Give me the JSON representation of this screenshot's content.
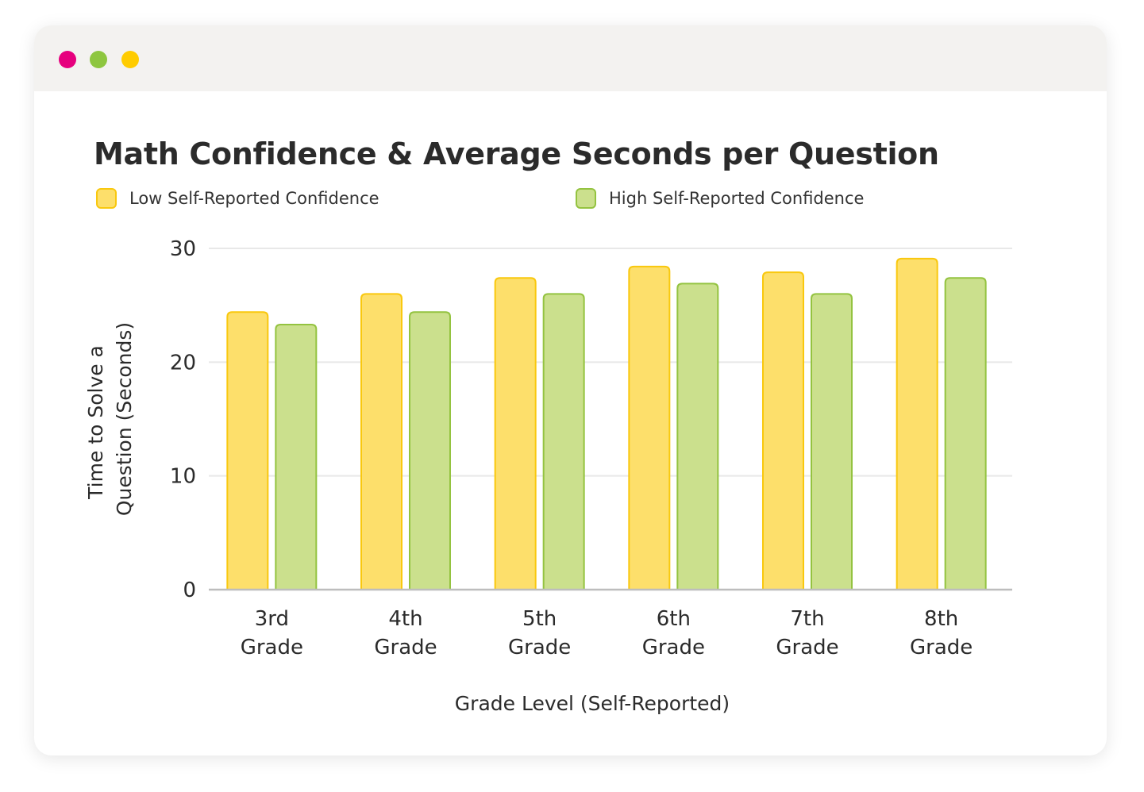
{
  "window": {
    "dot_colors": [
      "#e6007e",
      "#8dc63f",
      "#ffcc00"
    ]
  },
  "chart_data": {
    "type": "bar",
    "title": "Math Confidence & Average Seconds per Question",
    "xlabel": "Grade Level (Self-Reported)",
    "ylabel_lines": [
      "Time to Solve a",
      "Question (Seconds)"
    ],
    "ylim": [
      0,
      30
    ],
    "yticks": [
      "0",
      "10",
      "20",
      "30"
    ],
    "grid": true,
    "legend_position": "top",
    "categories": [
      [
        "3rd",
        "Grade"
      ],
      [
        "4th",
        "Grade"
      ],
      [
        "5th",
        "Grade"
      ],
      [
        "6th",
        "Grade"
      ],
      [
        "7th",
        "Grade"
      ],
      [
        "8th",
        "Grade"
      ]
    ],
    "series": [
      {
        "name": "Low Self-Reported Confidence",
        "fill": "#fddf6b",
        "stroke": "#f9c80e",
        "values": [
          24.4,
          26.0,
          27.4,
          28.4,
          27.9,
          29.1
        ]
      },
      {
        "name": "High Self-Reported Confidence",
        "fill": "#cbe08d",
        "stroke": "#94c340",
        "values": [
          23.3,
          24.4,
          26.0,
          26.9,
          26.0,
          27.4
        ]
      }
    ]
  }
}
